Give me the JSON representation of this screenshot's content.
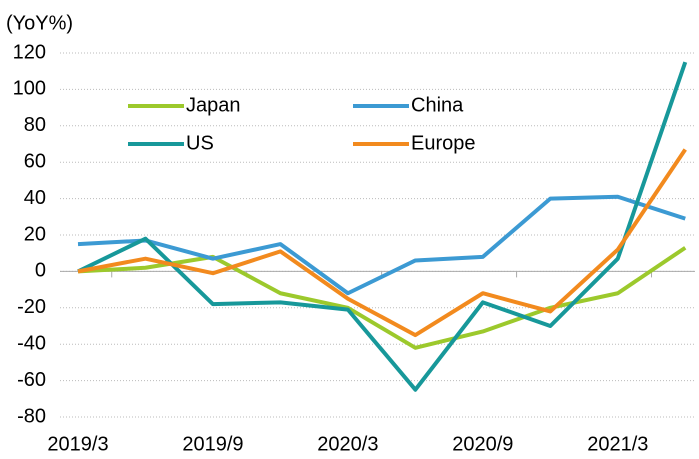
{
  "chart_data": {
    "type": "line",
    "y_label": "(YoY%)",
    "categories": [
      "2019/3",
      null,
      "2019/9",
      null,
      "2020/3",
      null,
      "2020/9",
      null,
      "2021/3",
      null
    ],
    "series": [
      {
        "name": "Japan",
        "color": "#9cc92c",
        "values": [
          0,
          2,
          8,
          -12,
          -20,
          -42,
          -33,
          -20,
          -12,
          13
        ]
      },
      {
        "name": "China",
        "color": "#3c9ad3",
        "values": [
          15,
          17,
          7,
          15,
          -12,
          6,
          8,
          40,
          41,
          29
        ]
      },
      {
        "name": "US",
        "color": "#17989a",
        "values": [
          0,
          18,
          -18,
          -17,
          -21,
          -65,
          -17,
          -30,
          7,
          115
        ]
      },
      {
        "name": "Europe",
        "color": "#f28a1e",
        "values": [
          0,
          7,
          -1,
          11,
          -15,
          -35,
          -12,
          -22,
          12,
          67
        ]
      }
    ],
    "ylim": [
      -80,
      120
    ],
    "yticks": [
      -80,
      -60,
      -40,
      -20,
      0,
      20,
      40,
      60,
      80,
      100,
      120
    ],
    "grid": true
  }
}
